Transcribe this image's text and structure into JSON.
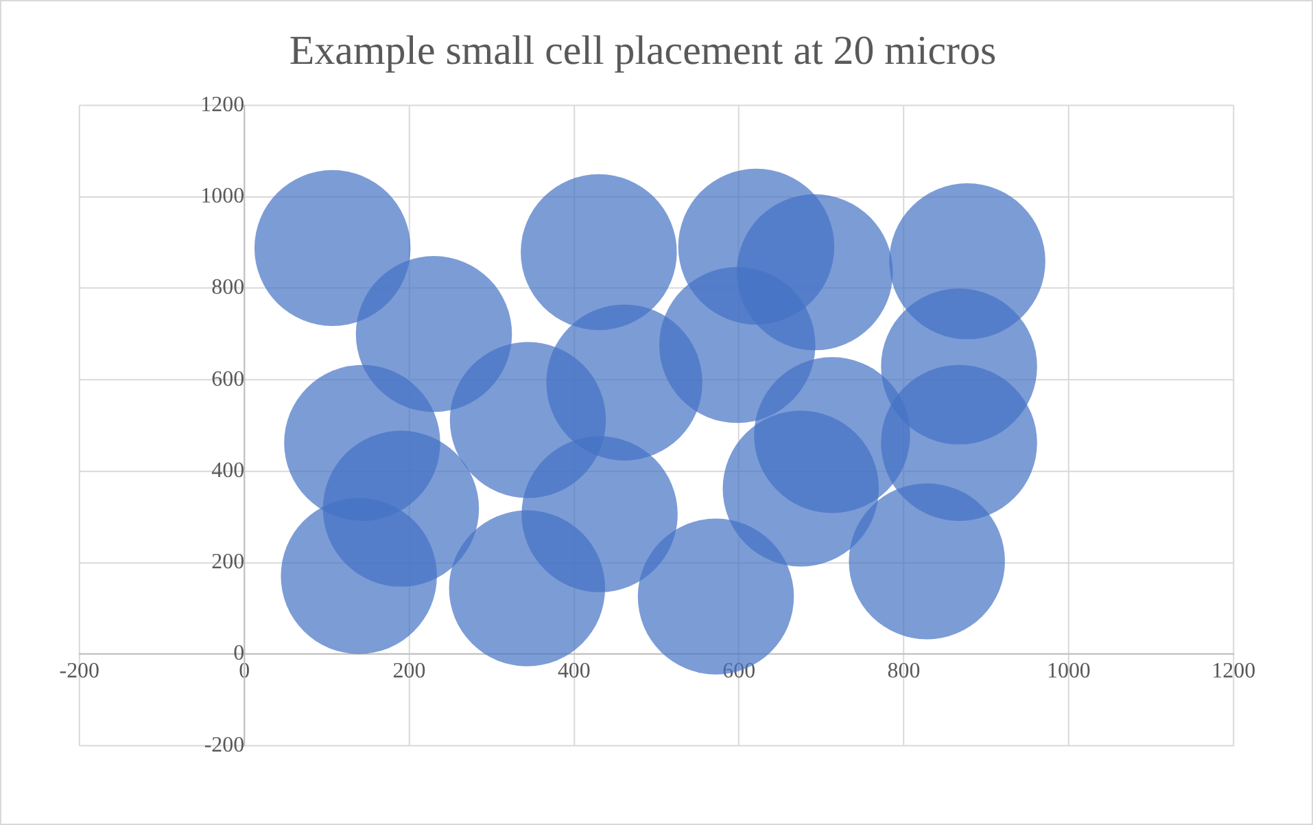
{
  "chart_data": {
    "type": "bubble",
    "title": "Example small cell placement at 20 micros",
    "x": [
      107,
      230,
      430,
      621,
      692,
      877,
      143,
      344,
      461,
      598,
      867,
      713,
      867,
      190,
      431,
      675,
      139,
      343,
      572,
      828
    ],
    "values": [
      888,
      700,
      879,
      891,
      835,
      859,
      462,
      512,
      594,
      676,
      629,
      479,
      462,
      318,
      306,
      362,
      171,
      144,
      126,
      203
    ],
    "sizes": [
      1,
      1,
      1,
      1,
      1,
      1,
      1,
      1,
      1,
      1,
      1,
      1,
      1,
      1,
      1,
      1,
      1,
      1,
      1,
      1
    ],
    "color": "#4472c4",
    "xlim": [
      -200,
      1200
    ],
    "xticks": [
      -200,
      0,
      200,
      400,
      600,
      800,
      1000,
      1200
    ],
    "ylim": [
      -200,
      1200
    ],
    "yticks": [
      -200,
      0,
      200,
      400,
      600,
      800,
      1000,
      1200
    ],
    "grid": true,
    "legend": false
  }
}
